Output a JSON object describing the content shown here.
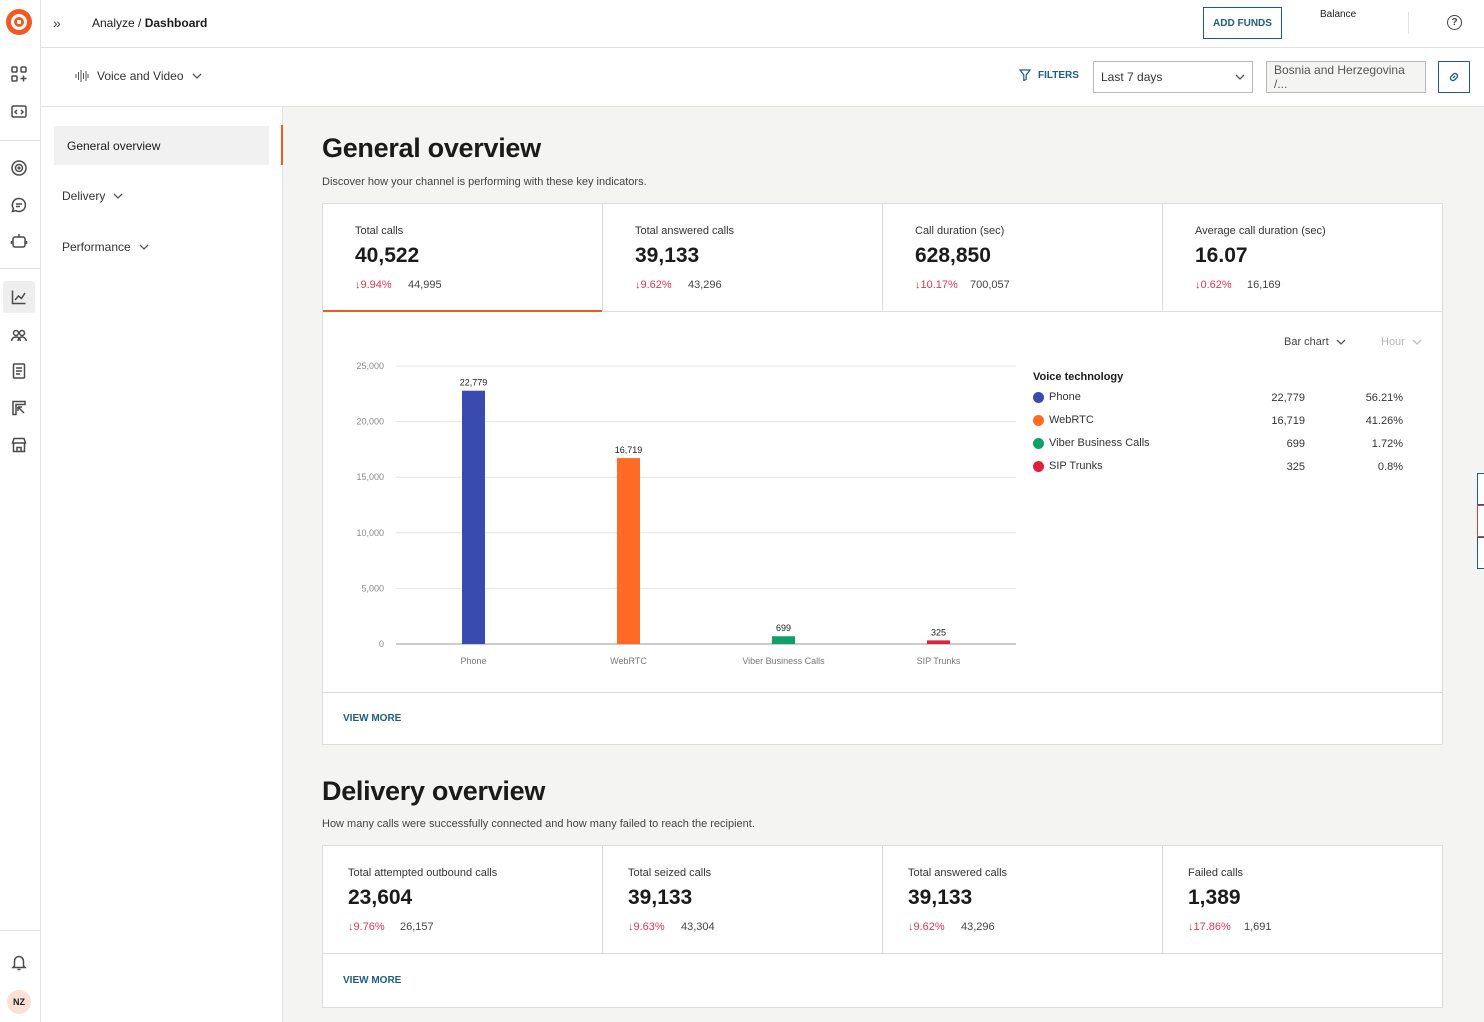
{
  "header": {
    "breadcrumb_parent": "Analyze /",
    "breadcrumb_current": "Dashboard",
    "add_funds_label": "ADD FUNDS",
    "balance_label": "Balance",
    "help_label": "?"
  },
  "user": {
    "initials": "NZ"
  },
  "filters": {
    "channel": "Voice and Video",
    "filters_label": "FILTERS",
    "period": "Last 7 days",
    "country": "Bosnia and Herzegovina /..."
  },
  "sidebar": {
    "items": [
      {
        "label": "General overview"
      },
      {
        "label": "Delivery"
      },
      {
        "label": "Performance"
      }
    ]
  },
  "general": {
    "title": "General overview",
    "subtitle": "Discover how your channel is performing with these key indicators.",
    "kpis": [
      {
        "label": "Total calls",
        "value": "40,522",
        "delta": "↓9.94%",
        "prev": "44,995"
      },
      {
        "label": "Total answered calls",
        "value": "39,133",
        "delta": "↓9.62%",
        "prev": "43,296"
      },
      {
        "label": "Call duration (sec)",
        "value": "628,850",
        "delta": "↓10.17%",
        "prev": "700,057"
      },
      {
        "label": "Average call duration (sec)",
        "value": "16.07",
        "delta": "↓0.62%",
        "prev": "16,169"
      }
    ],
    "chart_type_label": "Bar chart",
    "granularity_label": "Hour",
    "view_more": "VIEW MORE"
  },
  "chart_data": {
    "type": "bar",
    "categories": [
      "Phone",
      "WebRTC",
      "Viber Business Calls",
      "SIP Trunks"
    ],
    "values": [
      22779,
      16719,
      699,
      325
    ],
    "value_labels": [
      "22,779",
      "16,719",
      "699",
      "325"
    ],
    "colors": [
      "#3a4bb0",
      "#ff6a24",
      "#12a06a",
      "#e0203c"
    ],
    "ylim": [
      0,
      25000
    ],
    "yticks": [
      0,
      5000,
      10000,
      15000,
      20000,
      25000
    ],
    "ytick_labels": [
      "0",
      "5,000",
      "10,000",
      "15,000",
      "20,000",
      "25,000"
    ],
    "title": "",
    "xlabel": "",
    "ylabel": "",
    "legend": {
      "title": "Voice technology",
      "placement": "right",
      "entries": [
        {
          "name": "Phone",
          "count": "22,779",
          "pct": "56.21%",
          "color": "#3a4bb0"
        },
        {
          "name": "WebRTC",
          "count": "16,719",
          "pct": "41.26%",
          "color": "#ff6a24"
        },
        {
          "name": "Viber Business Calls",
          "count": "699",
          "pct": "1.72%",
          "color": "#12a06a"
        },
        {
          "name": "SIP Trunks",
          "count": "325",
          "pct": "0.8%",
          "color": "#e0203c"
        }
      ]
    }
  },
  "delivery": {
    "title": "Delivery overview",
    "subtitle": "How many calls were successfully connected and how many failed to reach the recipient.",
    "kpis": [
      {
        "label": "Total attempted outbound calls",
        "value": "23,604",
        "delta": "↓9.76%",
        "prev": "26,157"
      },
      {
        "label": "Total seized calls",
        "value": "39,133",
        "delta": "↓9.63%",
        "prev": "43,304"
      },
      {
        "label": "Total answered calls",
        "value": "39,133",
        "delta": "↓9.62%",
        "prev": "43,296"
      },
      {
        "label": "Failed calls",
        "value": "1,389",
        "delta": "↓17.86%",
        "prev": "1,691"
      }
    ],
    "view_more": "VIEW MORE"
  }
}
